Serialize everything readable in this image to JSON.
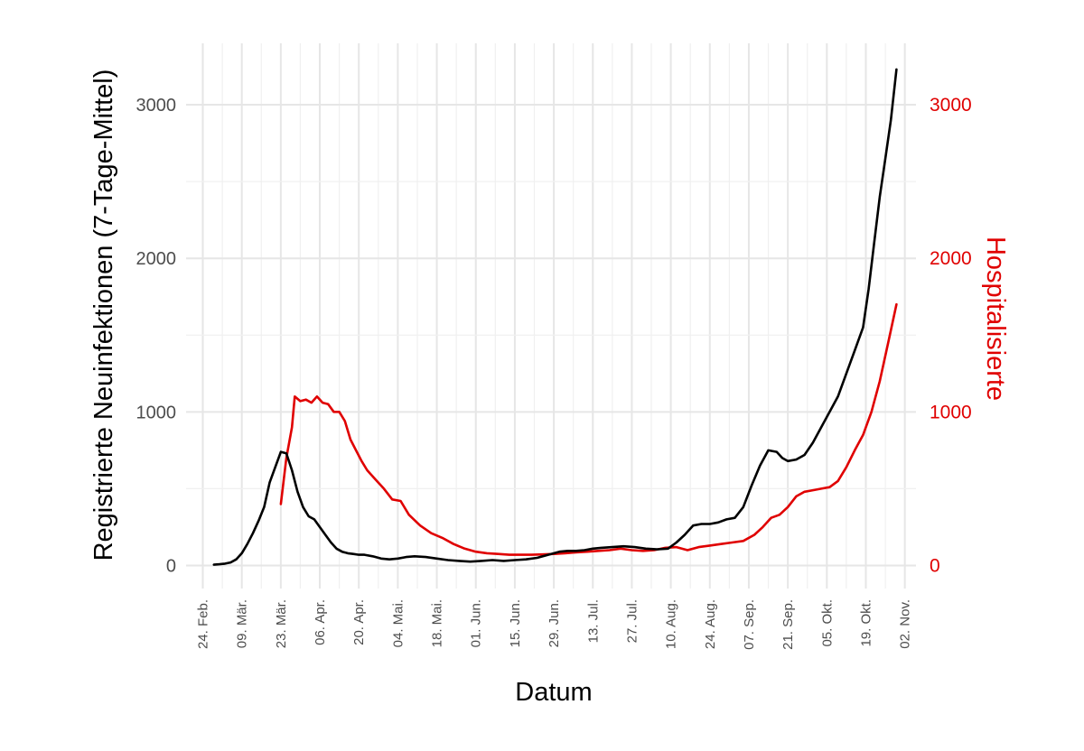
{
  "chart_data": {
    "type": "line",
    "xlabel": "Datum",
    "ylabel_left": "Registrierte Neuinfektionen (7-Tage-Mittel)",
    "ylabel_right": "Hospitalisierte",
    "ylabel_right_color": "#e00000",
    "left_series_color": "#000000",
    "ylim": [
      -150,
      3400
    ],
    "xlim_days": [
      -6,
      256
    ],
    "grid": true,
    "yticks": [
      0,
      1000,
      2000,
      3000
    ],
    "xtick_labels": [
      "24. Feb.",
      "09. Mär.",
      "23. Mär.",
      "06. Apr.",
      "20. Apr.",
      "04. Mai.",
      "18. Mai.",
      "01. Jun.",
      "15. Jun.",
      "29. Jun.",
      "13. Jul.",
      "27. Jul.",
      "10. Aug.",
      "24. Aug.",
      "07. Sep.",
      "21. Sep.",
      "05. Okt.",
      "19. Okt.",
      "02. Nov."
    ],
    "series": [
      {
        "name": "Registrierte Neuinfektionen (7-Tage-Mittel)",
        "axis": "left",
        "color": "#000000",
        "x": [
          "2020-02-28",
          "2020-03-01",
          "2020-03-03",
          "2020-03-05",
          "2020-03-07",
          "2020-03-09",
          "2020-03-11",
          "2020-03-13",
          "2020-03-15",
          "2020-03-17",
          "2020-03-19",
          "2020-03-21",
          "2020-03-23",
          "2020-03-25",
          "2020-03-27",
          "2020-03-29",
          "2020-03-31",
          "2020-04-02",
          "2020-04-04",
          "2020-04-06",
          "2020-04-08",
          "2020-04-10",
          "2020-04-12",
          "2020-04-14",
          "2020-04-16",
          "2020-04-18",
          "2020-04-20",
          "2020-04-22",
          "2020-04-25",
          "2020-04-28",
          "2020-05-01",
          "2020-05-04",
          "2020-05-07",
          "2020-05-10",
          "2020-05-14",
          "2020-05-18",
          "2020-05-22",
          "2020-05-26",
          "2020-05-30",
          "2020-06-03",
          "2020-06-07",
          "2020-06-11",
          "2020-06-15",
          "2020-06-19",
          "2020-06-23",
          "2020-06-27",
          "2020-07-01",
          "2020-07-04",
          "2020-07-07",
          "2020-07-10",
          "2020-07-13",
          "2020-07-16",
          "2020-07-20",
          "2020-07-24",
          "2020-07-28",
          "2020-08-01",
          "2020-08-05",
          "2020-08-09",
          "2020-08-12",
          "2020-08-15",
          "2020-08-18",
          "2020-08-21",
          "2020-08-24",
          "2020-08-27",
          "2020-08-30",
          "2020-09-02",
          "2020-09-05",
          "2020-09-08",
          "2020-09-11",
          "2020-09-14",
          "2020-09-17",
          "2020-09-19",
          "2020-09-21",
          "2020-09-24",
          "2020-09-27",
          "2020-09-30",
          "2020-10-03",
          "2020-10-06",
          "2020-10-09",
          "2020-10-12",
          "2020-10-15",
          "2020-10-18",
          "2020-10-20",
          "2020-10-22",
          "2020-10-24",
          "2020-10-26",
          "2020-10-28",
          "2020-10-30"
        ],
        "y": [
          5,
          8,
          12,
          20,
          40,
          80,
          140,
          210,
          290,
          380,
          540,
          640,
          740,
          730,
          620,
          480,
          380,
          320,
          300,
          250,
          200,
          150,
          110,
          90,
          80,
          75,
          70,
          70,
          60,
          45,
          40,
          45,
          55,
          60,
          55,
          45,
          35,
          30,
          25,
          30,
          35,
          30,
          35,
          40,
          50,
          70,
          90,
          95,
          95,
          100,
          110,
          115,
          120,
          125,
          120,
          110,
          105,
          110,
          150,
          200,
          260,
          270,
          270,
          280,
          300,
          310,
          380,
          520,
          650,
          750,
          740,
          700,
          680,
          690,
          720,
          800,
          900,
          1000,
          1100,
          1250,
          1400,
          1550,
          1800,
          2100,
          2400,
          2650,
          2900,
          3230
        ]
      },
      {
        "name": "Hospitalisierte",
        "axis": "right",
        "color": "#e00000",
        "x": [
          "2020-03-23",
          "2020-03-25",
          "2020-03-27",
          "2020-03-28",
          "2020-03-30",
          "2020-04-01",
          "2020-04-03",
          "2020-04-05",
          "2020-04-07",
          "2020-04-09",
          "2020-04-11",
          "2020-04-13",
          "2020-04-15",
          "2020-04-17",
          "2020-04-19",
          "2020-04-21",
          "2020-04-23",
          "2020-04-26",
          "2020-04-29",
          "2020-05-02",
          "2020-05-05",
          "2020-05-08",
          "2020-05-12",
          "2020-05-16",
          "2020-05-20",
          "2020-05-24",
          "2020-05-28",
          "2020-06-01",
          "2020-06-05",
          "2020-06-09",
          "2020-06-13",
          "2020-06-17",
          "2020-06-21",
          "2020-06-25",
          "2020-06-29",
          "2020-07-03",
          "2020-07-07",
          "2020-07-11",
          "2020-07-15",
          "2020-07-19",
          "2020-07-23",
          "2020-07-27",
          "2020-07-31",
          "2020-08-04",
          "2020-08-08",
          "2020-08-12",
          "2020-08-16",
          "2020-08-20",
          "2020-08-24",
          "2020-08-28",
          "2020-09-01",
          "2020-09-05",
          "2020-09-09",
          "2020-09-12",
          "2020-09-15",
          "2020-09-18",
          "2020-09-21",
          "2020-09-24",
          "2020-09-27",
          "2020-09-30",
          "2020-10-03",
          "2020-10-06",
          "2020-10-09",
          "2020-10-12",
          "2020-10-15",
          "2020-10-18",
          "2020-10-21",
          "2020-10-24",
          "2020-10-27",
          "2020-10-30"
        ],
        "y": [
          400,
          700,
          900,
          1100,
          1070,
          1080,
          1060,
          1100,
          1060,
          1050,
          1000,
          1000,
          940,
          820,
          750,
          680,
          620,
          560,
          500,
          430,
          420,
          330,
          260,
          210,
          180,
          140,
          110,
          90,
          80,
          75,
          70,
          70,
          70,
          72,
          75,
          80,
          85,
          90,
          95,
          100,
          110,
          100,
          95,
          100,
          115,
          120,
          100,
          120,
          130,
          140,
          150,
          160,
          200,
          250,
          310,
          330,
          380,
          450,
          480,
          490,
          500,
          510,
          550,
          640,
          750,
          850,
          1000,
          1200,
          1450,
          1700
        ]
      }
    ]
  }
}
